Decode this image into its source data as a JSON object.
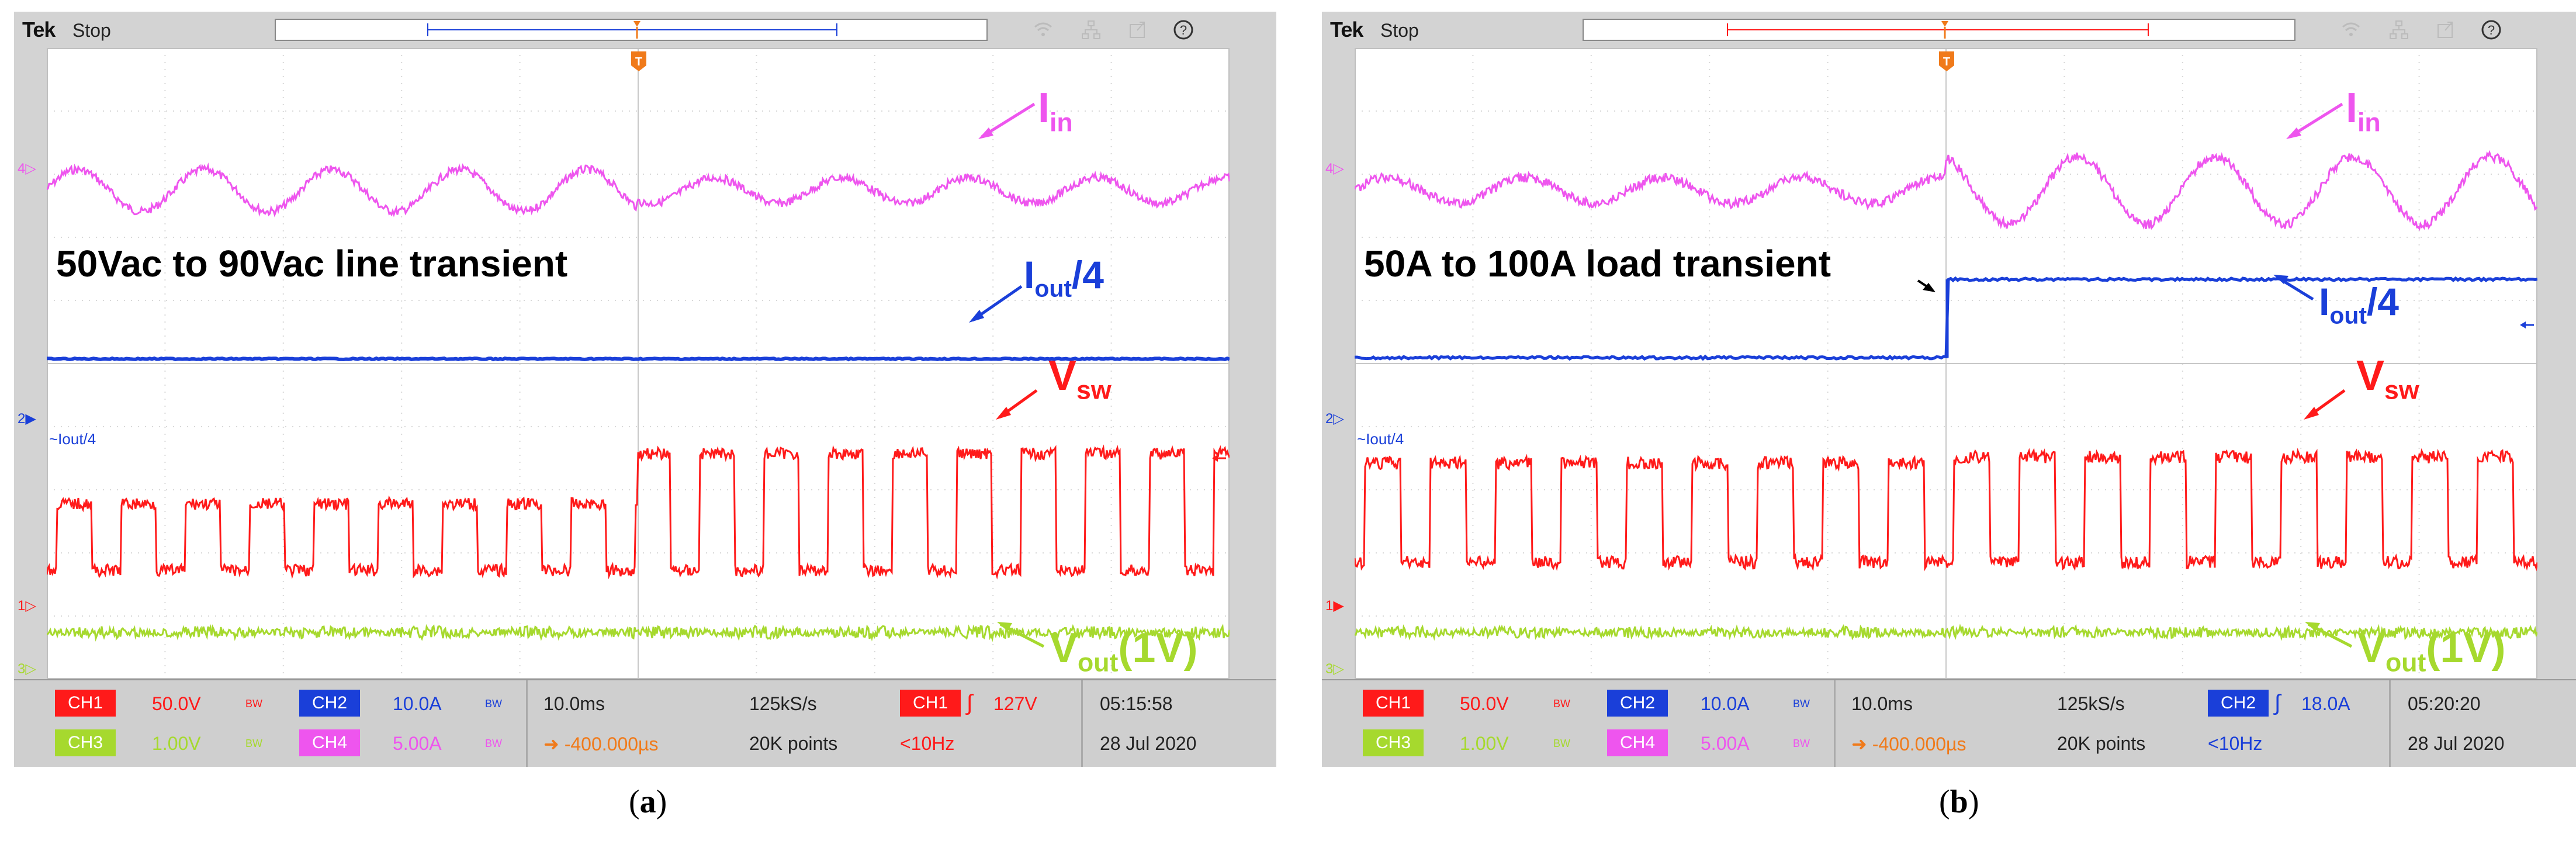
{
  "colors": {
    "ch1": "#ff1a1a",
    "ch2": "#1a3fd9",
    "ch3": "#a6d92e",
    "ch4": "#ee55ee",
    "trigger": "#f07a1a"
  },
  "panels": [
    {
      "id": "a",
      "brand": "Tek",
      "state": "Stop",
      "caption_open": "(",
      "caption_letter": "a",
      "caption_close": ")",
      "transient_label": "50Vac to 90Vac line transient",
      "annot": {
        "iin_main": "I",
        "iin_sub": "in",
        "iout_main": "I",
        "iout_sub": "out",
        "iout_suffix": "/4",
        "vsw_main": "V",
        "vsw_sub": "sw",
        "vout_main": "V",
        "vout_sub": "out",
        "vout_suffix": "(1V)"
      },
      "side_labels": {
        "ch4_marker": "4▷",
        "ch2_marker": "2▶",
        "ch2_label": "~Iout/4",
        "ch1_marker": "1▷",
        "ch3_marker": "3▷"
      },
      "channels": [
        {
          "name": "CH1",
          "scale": "50.0V",
          "bw": "BW"
        },
        {
          "name": "CH2",
          "scale": "10.0A",
          "bw": "BW"
        },
        {
          "name": "CH3",
          "scale": "1.00V",
          "bw": "BW"
        },
        {
          "name": "CH4",
          "scale": "5.00A",
          "bw": "BW"
        }
      ],
      "horizontal": {
        "scale": "10.0ms",
        "sample_rate": "125kS/s",
        "position": "-400.000µs",
        "record": "20K points"
      },
      "trigger": {
        "source": "CH1",
        "slope": "∫",
        "level": "127V",
        "freq": "<10Hz"
      },
      "time": "05:15:58",
      "date": "28 Jul 2020"
    },
    {
      "id": "b",
      "brand": "Tek",
      "state": "Stop",
      "caption_open": "(",
      "caption_letter": "b",
      "caption_close": ")",
      "transient_label": "50A to 100A load transient",
      "annot": {
        "iin_main": "I",
        "iin_sub": "in",
        "iout_main": "I",
        "iout_sub": "out",
        "iout_suffix": "/4",
        "vsw_main": "V",
        "vsw_sub": "sw",
        "vout_main": "V",
        "vout_sub": "out",
        "vout_suffix": "(1V)"
      },
      "side_labels": {
        "ch4_marker": "4▷",
        "ch2_marker": "2▷",
        "ch2_label": "~Iout/4",
        "ch1_marker": "1▶",
        "ch3_marker": "3▷"
      },
      "channels": [
        {
          "name": "CH1",
          "scale": "50.0V",
          "bw": "BW"
        },
        {
          "name": "CH2",
          "scale": "10.0A",
          "bw": "BW"
        },
        {
          "name": "CH3",
          "scale": "1.00V",
          "bw": "BW"
        },
        {
          "name": "CH4",
          "scale": "5.00A",
          "bw": "BW"
        }
      ],
      "horizontal": {
        "scale": "10.0ms",
        "sample_rate": "125kS/s",
        "position": "-400.000µs",
        "record": "20K points"
      },
      "trigger": {
        "source": "CH2",
        "slope": "∫",
        "level": "18.0A",
        "freq": "<10Hz"
      },
      "time": "05:20:20",
      "date": "28 Jul 2020"
    }
  ]
}
